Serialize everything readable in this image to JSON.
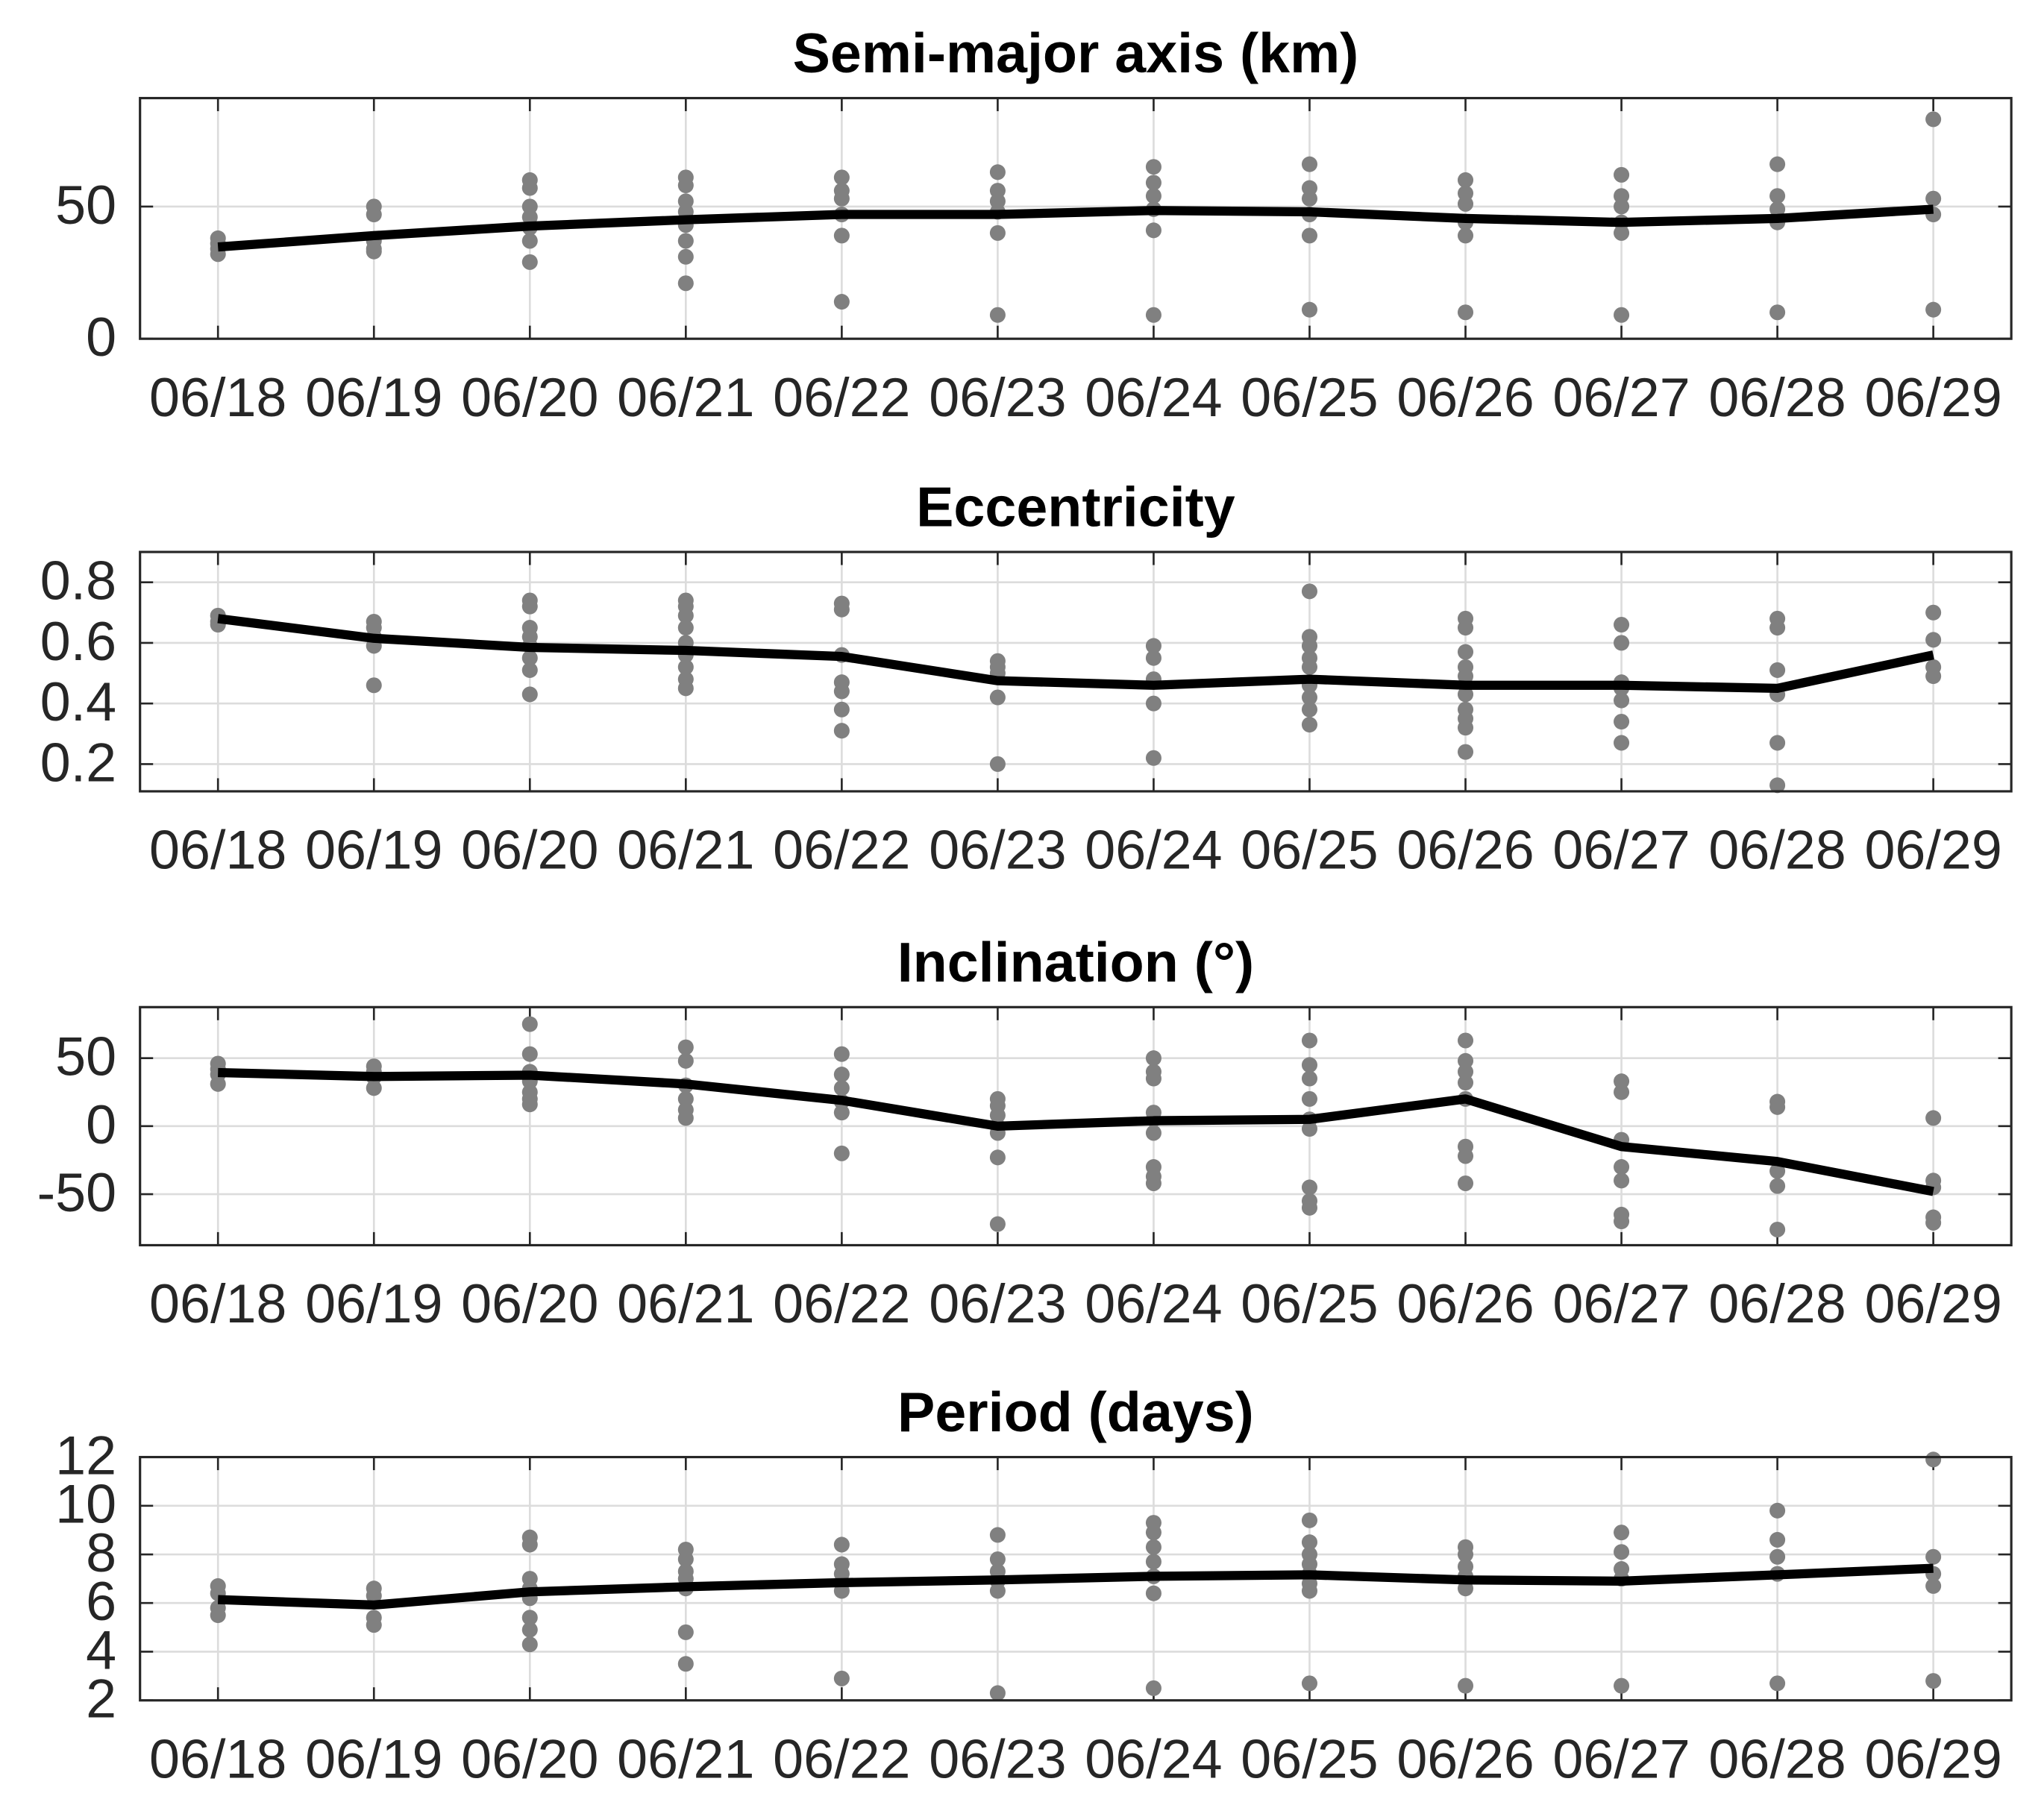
{
  "chart_data": [
    {
      "type": "line",
      "title": "Semi-major axis (km)",
      "categories": [
        "06/18",
        "06/19",
        "06/20",
        "06/21",
        "06/22",
        "06/23",
        "06/24",
        "06/25",
        "06/26",
        "06/27",
        "06/28",
        "06/29"
      ],
      "ylim": [
        0,
        91
      ],
      "yticks": [
        0,
        50
      ],
      "grid": true,
      "series": [
        {
          "color": "#000000",
          "values": [
            34.7,
            39,
            42.6,
            45,
            47,
            47,
            48.5,
            48,
            45.5,
            44,
            45.5,
            49
          ]
        }
      ],
      "samples": {
        "color": "#808080",
        "values": [
          [
            38,
            36,
            34,
            32
          ],
          [
            50,
            47,
            37,
            34,
            33
          ],
          [
            60,
            57,
            50,
            46,
            42,
            37,
            29
          ],
          [
            61,
            58,
            52,
            48,
            43,
            37,
            31,
            21
          ],
          [
            61,
            56,
            53,
            47,
            39,
            14
          ],
          [
            63,
            56,
            52,
            48,
            40,
            9
          ],
          [
            65,
            59,
            54,
            49,
            41,
            9
          ],
          [
            66,
            57,
            53,
            47,
            39,
            11
          ],
          [
            60,
            55,
            51,
            44,
            39,
            10
          ],
          [
            62,
            54,
            50,
            44,
            40,
            9
          ],
          [
            66,
            54,
            49,
            44,
            10
          ],
          [
            83,
            53,
            47,
            11
          ]
        ]
      }
    },
    {
      "type": "line",
      "title": "Eccentricity",
      "categories": [
        "06/18",
        "06/19",
        "06/20",
        "06/21",
        "06/22",
        "06/23",
        "06/24",
        "06/25",
        "06/26",
        "06/27",
        "06/28",
        "06/29"
      ],
      "ylim": [
        0.11,
        0.9
      ],
      "yticks": [
        0.2,
        0.4,
        0.6,
        0.8
      ],
      "grid": true,
      "series": [
        {
          "color": "#000000",
          "values": [
            0.68,
            0.615,
            0.585,
            0.575,
            0.555,
            0.475,
            0.46,
            0.48,
            0.46,
            0.46,
            0.45,
            0.56
          ]
        }
      ],
      "samples": {
        "color": "#808080",
        "values": [
          [
            0.69,
            0.67,
            0.66
          ],
          [
            0.67,
            0.65,
            0.62,
            0.59,
            0.46
          ],
          [
            0.74,
            0.72,
            0.65,
            0.62,
            0.59,
            0.55,
            0.51,
            0.43
          ],
          [
            0.74,
            0.72,
            0.69,
            0.65,
            0.6,
            0.56,
            0.52,
            0.48,
            0.45
          ],
          [
            0.73,
            0.71,
            0.56,
            0.47,
            0.44,
            0.38,
            0.31
          ],
          [
            0.54,
            0.52,
            0.5,
            0.42,
            0.2
          ],
          [
            0.59,
            0.55,
            0.48,
            0.4,
            0.22
          ],
          [
            0.77,
            0.62,
            0.59,
            0.55,
            0.52,
            0.46,
            0.42,
            0.38,
            0.33
          ],
          [
            0.68,
            0.65,
            0.57,
            0.52,
            0.49,
            0.43,
            0.38,
            0.35,
            0.32,
            0.24
          ],
          [
            0.66,
            0.6,
            0.47,
            0.45,
            0.41,
            0.34,
            0.27
          ],
          [
            0.68,
            0.65,
            0.51,
            0.43,
            0.27,
            0.13
          ],
          [
            0.7,
            0.61,
            0.52,
            0.49
          ]
        ]
      }
    },
    {
      "type": "line",
      "title": "Inclination (°)",
      "categories": [
        "06/18",
        "06/19",
        "06/20",
        "06/21",
        "06/22",
        "06/23",
        "06/24",
        "06/25",
        "06/26",
        "06/27",
        "06/28",
        "06/29"
      ],
      "ylim": [
        -87.5,
        87.5
      ],
      "yticks": [
        -50,
        0,
        50
      ],
      "grid": true,
      "series": [
        {
          "color": "#000000",
          "values": [
            39.4,
            36.5,
            37.5,
            31,
            19,
            0,
            4,
            5,
            20,
            -15,
            -26,
            -48
          ]
        }
      ],
      "samples": {
        "color": "#808080",
        "values": [
          [
            46,
            42,
            38,
            31
          ],
          [
            44,
            40,
            36,
            28
          ],
          [
            75,
            53,
            40,
            33,
            25,
            20,
            16
          ],
          [
            58,
            48,
            30,
            20,
            12,
            6
          ],
          [
            53,
            38,
            28,
            18,
            10,
            -20
          ],
          [
            20,
            15,
            8,
            0,
            -5,
            -23,
            -72
          ],
          [
            50,
            40,
            35,
            10,
            5,
            -5,
            -30,
            -37,
            -42
          ],
          [
            63,
            45,
            35,
            20,
            5,
            -2,
            -45,
            -55,
            -60
          ],
          [
            63,
            48,
            40,
            32,
            20,
            -15,
            -22,
            -42
          ],
          [
            33,
            25,
            -10,
            -30,
            -40,
            -65,
            -70
          ],
          [
            18,
            14,
            -33,
            -44,
            -76
          ],
          [
            6,
            -40,
            -45,
            -67,
            -71
          ]
        ]
      }
    },
    {
      "type": "line",
      "title": "Period (days)",
      "categories": [
        "06/18",
        "06/19",
        "06/20",
        "06/21",
        "06/22",
        "06/23",
        "06/24",
        "06/25",
        "06/26",
        "06/27",
        "06/28",
        "06/29"
      ],
      "ylim": [
        2,
        12
      ],
      "yticks": [
        2,
        4,
        6,
        8,
        10,
        12
      ],
      "grid": true,
      "series": [
        {
          "color": "#000000",
          "values": [
            6.14,
            5.92,
            6.46,
            6.67,
            6.84,
            6.95,
            7.1,
            7.16,
            6.95,
            6.9,
            7.16,
            7.43
          ]
        }
      ],
      "samples": {
        "color": "#808080",
        "values": [
          [
            6.7,
            6.4,
            5.8,
            5.5
          ],
          [
            6.6,
            6.3,
            5.4,
            5.1
          ],
          [
            8.7,
            8.4,
            7.0,
            6.6,
            6.2,
            5.4,
            4.9,
            4.3
          ],
          [
            8.2,
            7.8,
            7.3,
            7.0,
            6.6,
            4.8,
            3.5
          ],
          [
            8.4,
            7.6,
            7.2,
            6.8,
            6.5,
            2.9
          ],
          [
            8.8,
            7.8,
            7.3,
            6.9,
            6.5,
            2.3
          ],
          [
            9.3,
            8.9,
            8.3,
            7.7,
            7.1,
            6.4,
            2.5
          ],
          [
            9.4,
            8.5,
            8.0,
            7.6,
            7.2,
            6.8,
            6.5,
            2.7
          ],
          [
            8.3,
            8.0,
            7.5,
            7.1,
            6.6,
            2.6
          ],
          [
            8.9,
            8.1,
            7.4,
            7.0,
            2.6
          ],
          [
            9.8,
            8.6,
            7.9,
            7.2,
            2.7
          ],
          [
            11.9,
            7.9,
            7.2,
            6.7,
            2.8
          ]
        ]
      }
    }
  ]
}
